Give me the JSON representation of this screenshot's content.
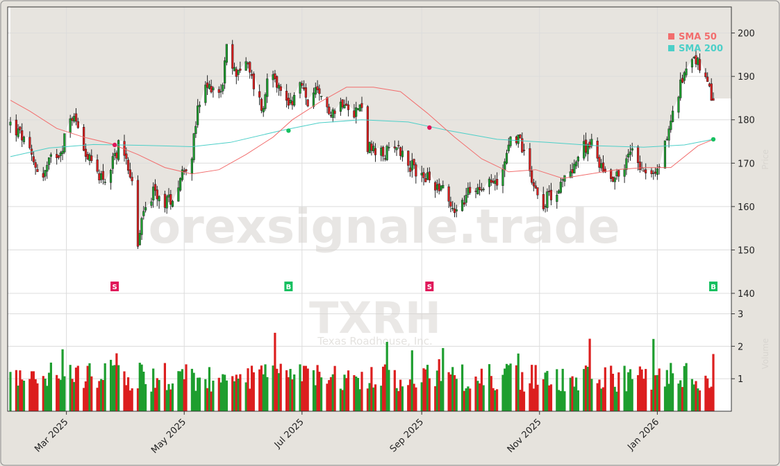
{
  "watermark": {
    "site": "orexsignale.trade",
    "ticker": "TXRH",
    "company": "Texas Roadhouse, Inc.",
    "price_axis_label": "Price",
    "volume_axis_label": "Volume"
  },
  "legend": [
    {
      "label": "SMA 50",
      "color": "#f26d6d"
    },
    {
      "label": "SMA 200",
      "color": "#4ccfc8"
    }
  ],
  "chart_data": {
    "type": "candlestick",
    "ticker": "TXRH",
    "price_axis": {
      "ticks": [
        140,
        150,
        160,
        170,
        180,
        190,
        200
      ],
      "range": [
        137.5,
        206
      ]
    },
    "volume_axis": {
      "ticks": [
        1,
        2,
        3
      ],
      "range": [
        0,
        3.2
      ]
    },
    "x_axis_labels": [
      {
        "label": "Mar 2025",
        "date": "2025-03-01"
      },
      {
        "label": "May 2025",
        "date": "2025-05-01"
      },
      {
        "label": "Jul 2025",
        "date": "2025-07-01"
      },
      {
        "label": "Sep 2025",
        "date": "2025-09-01"
      },
      {
        "label": "Nov 2025",
        "date": "2025-11-01"
      },
      {
        "label": "Jan 2026",
        "date": "2026-01-01"
      }
    ],
    "date_range": [
      "2025-01-31",
      "2026-01-30"
    ],
    "price_keypoints": [
      [
        "2025-01-31",
        179
      ],
      [
        "2025-02-06",
        176
      ],
      [
        "2025-02-12",
        170
      ],
      [
        "2025-02-17",
        167
      ],
      [
        "2025-02-21",
        171
      ],
      [
        "2025-02-26",
        173
      ],
      [
        "2025-03-04",
        181
      ],
      [
        "2025-03-08",
        178
      ],
      [
        "2025-03-12",
        171
      ],
      [
        "2025-03-17",
        168
      ],
      [
        "2025-03-22",
        166
      ],
      [
        "2025-03-28",
        174
      ],
      [
        "2025-04-01",
        172
      ],
      [
        "2025-04-04",
        165
      ],
      [
        "2025-04-07",
        151
      ],
      [
        "2025-04-10",
        159
      ],
      [
        "2025-04-15",
        163
      ],
      [
        "2025-04-20",
        161
      ],
      [
        "2025-04-25",
        162
      ],
      [
        "2025-04-30",
        168
      ],
      [
        "2025-05-05",
        172
      ],
      [
        "2025-05-08",
        182
      ],
      [
        "2025-05-12",
        187
      ],
      [
        "2025-05-16",
        188
      ],
      [
        "2025-05-20",
        186
      ],
      [
        "2025-05-23",
        196
      ],
      [
        "2025-05-27",
        191
      ],
      [
        "2025-06-02",
        193
      ],
      [
        "2025-06-06",
        188
      ],
      [
        "2025-06-11",
        182
      ],
      [
        "2025-06-13",
        190
      ],
      [
        "2025-06-16",
        192
      ],
      [
        "2025-06-20",
        186
      ],
      [
        "2025-06-25",
        184
      ],
      [
        "2025-06-30",
        188
      ],
      [
        "2025-07-04",
        184
      ],
      [
        "2025-07-08",
        186
      ],
      [
        "2025-07-13",
        183
      ],
      [
        "2025-07-18",
        182
      ],
      [
        "2025-07-23",
        185
      ],
      [
        "2025-07-28",
        182
      ],
      [
        "2025-08-01",
        183
      ],
      [
        "2025-08-04",
        174
      ],
      [
        "2025-08-08",
        172
      ],
      [
        "2025-08-13",
        172
      ],
      [
        "2025-08-18",
        175
      ],
      [
        "2025-08-22",
        172
      ],
      [
        "2025-08-27",
        169
      ],
      [
        "2025-09-02",
        167
      ],
      [
        "2025-09-08",
        165
      ],
      [
        "2025-09-12",
        165
      ],
      [
        "2025-09-16",
        160
      ],
      [
        "2025-09-20",
        159
      ],
      [
        "2025-09-25",
        163
      ],
      [
        "2025-10-01",
        165
      ],
      [
        "2025-10-06",
        166
      ],
      [
        "2025-10-10",
        165
      ],
      [
        "2025-10-14",
        171
      ],
      [
        "2025-10-18",
        177
      ],
      [
        "2025-10-22",
        175
      ],
      [
        "2025-10-26",
        170
      ],
      [
        "2025-10-30",
        164
      ],
      [
        "2025-11-03",
        161
      ],
      [
        "2025-11-07",
        163
      ],
      [
        "2025-11-11",
        164
      ],
      [
        "2025-11-15",
        167
      ],
      [
        "2025-11-19",
        170
      ],
      [
        "2025-11-23",
        173
      ],
      [
        "2025-11-27",
        175
      ],
      [
        "2025-12-01",
        171
      ],
      [
        "2025-12-05",
        168
      ],
      [
        "2025-12-10",
        167
      ],
      [
        "2025-12-15",
        169
      ],
      [
        "2025-12-19",
        174
      ],
      [
        "2025-12-23",
        170
      ],
      [
        "2025-12-27",
        168
      ],
      [
        "2025-12-31",
        167
      ],
      [
        "2026-01-03",
        171
      ],
      [
        "2026-01-07",
        178
      ],
      [
        "2026-01-12",
        186
      ],
      [
        "2026-01-16",
        193
      ],
      [
        "2026-01-20",
        195
      ],
      [
        "2026-01-24",
        191
      ],
      [
        "2026-01-30",
        184
      ]
    ],
    "sma50": [
      [
        "2025-01-31",
        184.5
      ],
      [
        "2025-02-10",
        182
      ],
      [
        "2025-02-24",
        178
      ],
      [
        "2025-03-10",
        176
      ],
      [
        "2025-03-24",
        174.5
      ],
      [
        "2025-04-07",
        172
      ],
      [
        "2025-04-21",
        169
      ],
      [
        "2025-05-05",
        167.5
      ],
      [
        "2025-05-19",
        168.5
      ],
      [
        "2025-06-02",
        172
      ],
      [
        "2025-06-16",
        176
      ],
      [
        "2025-06-26",
        180
      ],
      [
        "2025-07-10",
        184
      ],
      [
        "2025-07-24",
        187.5
      ],
      [
        "2025-08-07",
        187.5
      ],
      [
        "2025-08-21",
        186.5
      ],
      [
        "2025-09-04",
        181.5
      ],
      [
        "2025-09-18",
        176
      ],
      [
        "2025-10-02",
        171
      ],
      [
        "2025-10-16",
        168
      ],
      [
        "2025-10-30",
        168.5
      ],
      [
        "2025-11-13",
        166.5
      ],
      [
        "2025-11-27",
        167.5
      ],
      [
        "2025-12-11",
        168.5
      ],
      [
        "2025-12-25",
        169
      ],
      [
        "2026-01-08",
        169
      ],
      [
        "2026-01-22",
        174
      ],
      [
        "2026-01-30",
        175.5
      ]
    ],
    "sma200": [
      [
        "2025-01-31",
        171.5
      ],
      [
        "2025-02-20",
        173.5
      ],
      [
        "2025-03-15",
        174.3
      ],
      [
        "2025-04-10",
        174.1
      ],
      [
        "2025-05-05",
        173.8
      ],
      [
        "2025-05-25",
        174.8
      ],
      [
        "2025-06-20",
        177.5
      ],
      [
        "2025-07-10",
        179.3
      ],
      [
        "2025-08-01",
        180
      ],
      [
        "2025-08-25",
        179.5
      ],
      [
        "2025-09-15",
        177.5
      ],
      [
        "2025-10-10",
        175.5
      ],
      [
        "2025-11-05",
        174.8
      ],
      [
        "2025-12-01",
        174
      ],
      [
        "2025-12-25",
        173.7
      ],
      [
        "2026-01-15",
        174.2
      ],
      [
        "2026-01-30",
        175.5
      ]
    ],
    "signals": [
      {
        "type": "S",
        "date": "2025-03-26",
        "price": 174.2
      },
      {
        "type": "B",
        "date": "2025-06-24",
        "price": 177.5
      },
      {
        "type": "S",
        "date": "2025-09-05",
        "price": 178.2
      },
      {
        "type": "B",
        "date": "2026-01-30",
        "price": 175.5
      }
    ]
  }
}
